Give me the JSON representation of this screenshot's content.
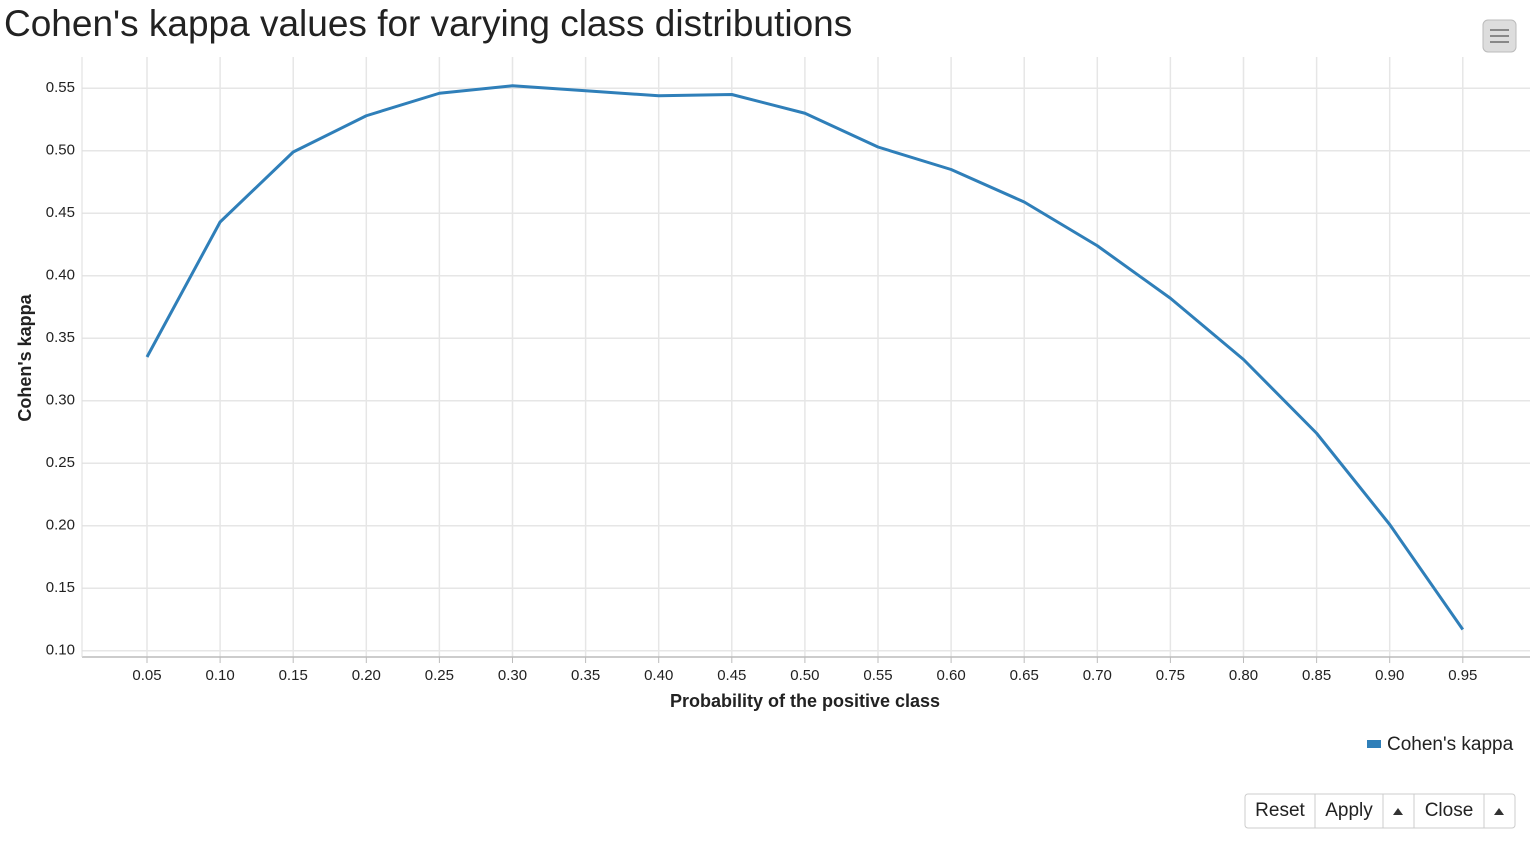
{
  "chart_data": {
    "type": "line",
    "title": "Cohen's kappa values for varying class distributions",
    "x_label": "Probability of the positive class",
    "y_label": "Cohen's kappa",
    "categories": [
      "0.05",
      "0.10",
      "0.15",
      "0.20",
      "0.25",
      "0.30",
      "0.35",
      "0.40",
      "0.45",
      "0.50",
      "0.55",
      "0.60",
      "0.65",
      "0.70",
      "0.75",
      "0.80",
      "0.85",
      "0.90",
      "0.95"
    ],
    "series": [
      {
        "name": "Cohen's kappa",
        "color": "#2f7fb9",
        "values": [
          0.335,
          0.443,
          0.499,
          0.528,
          0.546,
          0.552,
          0.548,
          0.544,
          0.545,
          0.53,
          0.503,
          0.485,
          0.459,
          0.424,
          0.382,
          0.333,
          0.274,
          0.201,
          0.117
        ]
      }
    ],
    "ylim": [
      0.095,
      0.575
    ],
    "yticks": [
      {
        "value": 0.1,
        "label": "0.10"
      },
      0.15,
      {
        "value": 0.2,
        "label": "0.20"
      },
      0.25,
      {
        "value": 0.3,
        "label": "0.30"
      },
      0.35,
      {
        "value": 0.4,
        "label": "0.40"
      },
      0.45,
      {
        "value": 0.5,
        "label": "0.50"
      },
      0.55
    ],
    "grid": true
  },
  "controls": {
    "reset": "Reset",
    "apply": "Apply",
    "close": "Close"
  }
}
